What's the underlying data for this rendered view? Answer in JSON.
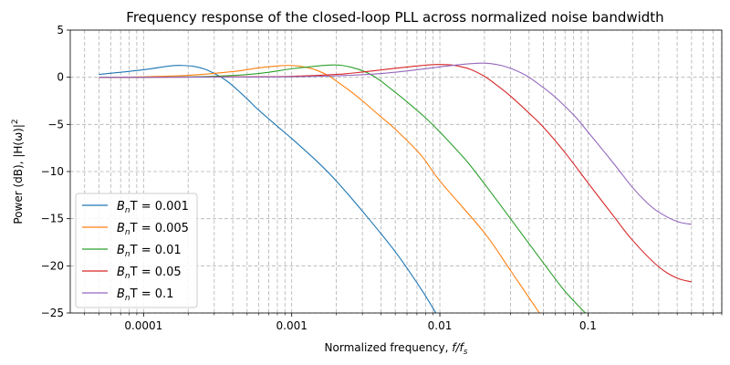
{
  "chart_data": {
    "type": "line",
    "title": "Frequency response of the closed-loop PLL across normalized noise bandwidth",
    "xlabel_text": "Normalized frequency, ",
    "xlabel_var": "f/f",
    "xlabel_sub": "s",
    "ylabel_text": "Power (dB), |H(ω)|",
    "ylabel_sup": "2",
    "xscale": "log",
    "xlim": [
      3.2e-05,
      0.8
    ],
    "ylim": [
      -25,
      5
    ],
    "xticks": [
      0.0001,
      0.001,
      0.01,
      0.1
    ],
    "xtick_labels": [
      "0.0001",
      "0.001",
      "0.01",
      "0.1"
    ],
    "yticks": [
      5,
      0,
      -5,
      -10,
      -15,
      -20,
      -25
    ],
    "ytick_labels": [
      "5",
      "0",
      "−5",
      "−10",
      "−15",
      "−20",
      "−25"
    ],
    "grid": true,
    "legend_position": "lower-left",
    "series": [
      {
        "name_prefix": "B",
        "name_sub": "n",
        "name_suffix": "T = 0.001",
        "color": "#1f77b4",
        "x": [
          5e-05,
          0.0001,
          0.00015,
          0.00018,
          0.00022,
          0.00026,
          0.0003,
          0.00035,
          0.0004,
          0.0005,
          0.0006,
          0.0008,
          0.001,
          0.0015,
          0.002,
          0.003,
          0.005,
          0.0075,
          0.0094
        ],
        "y": [
          0.3,
          0.8,
          1.2,
          1.25,
          1.15,
          0.85,
          0.4,
          -0.2,
          -0.9,
          -2.3,
          -3.5,
          -5.2,
          -6.5,
          -9.0,
          -11.0,
          -14.2,
          -18.5,
          -22.5,
          -25.0
        ]
      },
      {
        "name_prefix": "B",
        "name_sub": "n",
        "name_suffix": "T = 0.005",
        "color": "#ff7f0e",
        "x": [
          5e-05,
          0.0001,
          0.0002,
          0.0004,
          0.0006,
          0.0008,
          0.00095,
          0.0011,
          0.0013,
          0.0015,
          0.0018,
          0.002,
          0.0025,
          0.003,
          0.004,
          0.005,
          0.0075,
          0.01,
          0.02,
          0.03,
          0.047
        ],
        "y": [
          0.0,
          0.05,
          0.2,
          0.6,
          1.0,
          1.2,
          1.25,
          1.2,
          1.0,
          0.7,
          0.1,
          -0.4,
          -1.5,
          -2.5,
          -4.2,
          -5.5,
          -8.3,
          -11.0,
          -16.5,
          -20.5,
          -25.0
        ]
      },
      {
        "name_prefix": "B",
        "name_sub": "n",
        "name_suffix": "T = 0.01",
        "color": "#2ca02c",
        "x": [
          5e-05,
          0.0001,
          0.0003,
          0.0006,
          0.001,
          0.0015,
          0.0019,
          0.0022,
          0.0026,
          0.003,
          0.0035,
          0.004,
          0.005,
          0.006,
          0.008,
          0.01,
          0.015,
          0.02,
          0.03,
          0.05,
          0.07,
          0.096
        ],
        "y": [
          0.0,
          0.0,
          0.1,
          0.4,
          0.9,
          1.2,
          1.3,
          1.25,
          1.0,
          0.7,
          0.2,
          -0.4,
          -1.6,
          -2.6,
          -4.3,
          -5.8,
          -8.8,
          -11.3,
          -15.0,
          -19.7,
          -22.7,
          -25.0
        ]
      },
      {
        "name_prefix": "B",
        "name_sub": "n",
        "name_suffix": "T = 0.05",
        "color": "#d62728",
        "x": [
          5e-05,
          0.0001,
          0.0005,
          0.001,
          0.002,
          0.003,
          0.005,
          0.007,
          0.0095,
          0.012,
          0.014,
          0.016,
          0.02,
          0.025,
          0.03,
          0.04,
          0.05,
          0.07,
          0.1,
          0.15,
          0.2,
          0.3,
          0.4,
          0.5
        ],
        "y": [
          0.0,
          0.0,
          0.05,
          0.1,
          0.3,
          0.55,
          0.95,
          1.2,
          1.35,
          1.3,
          1.1,
          0.85,
          0.1,
          -1.0,
          -2.0,
          -3.8,
          -5.3,
          -8.0,
          -11.2,
          -14.8,
          -17.3,
          -20.1,
          -21.3,
          -21.7
        ]
      },
      {
        "name_prefix": "B",
        "name_sub": "n",
        "name_suffix": "T = 0.1",
        "color": "#9467bd",
        "x": [
          5e-05,
          0.0001,
          0.0005,
          0.001,
          0.002,
          0.004,
          0.007,
          0.01,
          0.015,
          0.019,
          0.022,
          0.026,
          0.03,
          0.035,
          0.04,
          0.05,
          0.06,
          0.08,
          0.1,
          0.15,
          0.2,
          0.25,
          0.3,
          0.4,
          0.5
        ],
        "y": [
          0.0,
          0.0,
          0.02,
          0.05,
          0.15,
          0.4,
          0.8,
          1.1,
          1.4,
          1.5,
          1.45,
          1.25,
          0.95,
          0.5,
          0.0,
          -1.1,
          -2.1,
          -4.0,
          -5.8,
          -9.2,
          -11.7,
          -13.3,
          -14.3,
          -15.3,
          -15.6
        ]
      }
    ]
  }
}
